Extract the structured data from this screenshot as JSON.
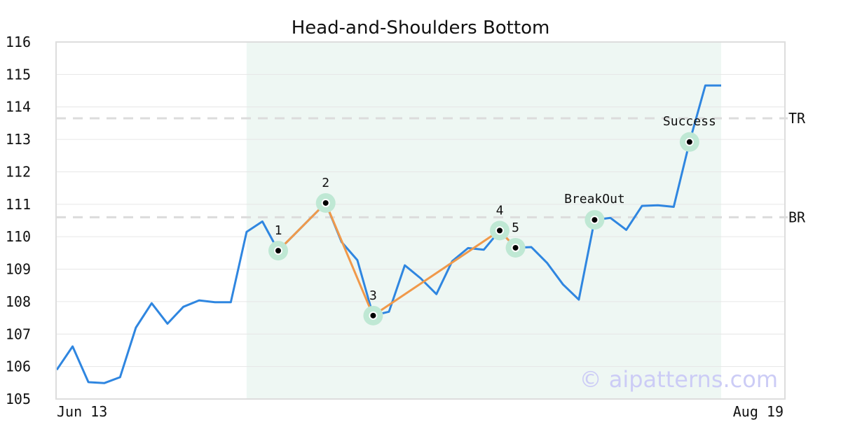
{
  "chart_data": {
    "type": "line",
    "title": "Head-and-Shoulders Bottom",
    "xlabel": "",
    "ylabel": "",
    "x_tick_labels": [
      "Jun 13",
      "Aug 19"
    ],
    "ylim": [
      105,
      116
    ],
    "y_ticks": [
      105,
      106,
      107,
      108,
      109,
      110,
      111,
      112,
      113,
      114,
      115,
      116
    ],
    "grid": true,
    "colors": {
      "price": "#2f86e0",
      "pattern": "#f0994a",
      "marker_halo": "#bfe8d4",
      "highlight": "#eef7f3",
      "level": "#dcdcdc",
      "watermark": "#ccccf6"
    },
    "price": [
      105.9,
      106.62,
      105.52,
      105.49,
      105.67,
      107.2,
      107.95,
      107.32,
      107.84,
      108.04,
      107.98,
      107.98,
      110.15,
      110.47,
      109.57,
      110.06,
      110.55,
      111.04,
      109.84,
      109.28,
      107.57,
      107.69,
      109.12,
      108.72,
      108.23,
      109.25,
      109.65,
      109.6,
      110.19,
      109.66,
      109.68,
      109.19,
      108.53,
      108.06,
      110.52,
      110.58,
      110.21,
      110.95,
      110.97,
      110.92,
      112.92,
      114.66,
      114.66
    ],
    "highlight_range": [
      12,
      42
    ],
    "pattern_points": [
      {
        "label": "1",
        "index": 14,
        "value": 109.57
      },
      {
        "label": "2",
        "index": 17,
        "value": 111.04
      },
      {
        "label": "3",
        "index": 20,
        "value": 107.57
      },
      {
        "label": "4",
        "index": 28,
        "value": 110.19
      },
      {
        "label": "5",
        "index": 29,
        "value": 109.66
      }
    ],
    "signals": [
      {
        "label": "BreakOut",
        "index": 34,
        "value": 110.52
      },
      {
        "label": "Success",
        "index": 40,
        "value": 112.92
      }
    ],
    "levels": [
      {
        "label": "TR",
        "value": 113.65
      },
      {
        "label": "BR",
        "value": 110.6
      }
    ]
  },
  "watermark": "© aipatterns.com"
}
